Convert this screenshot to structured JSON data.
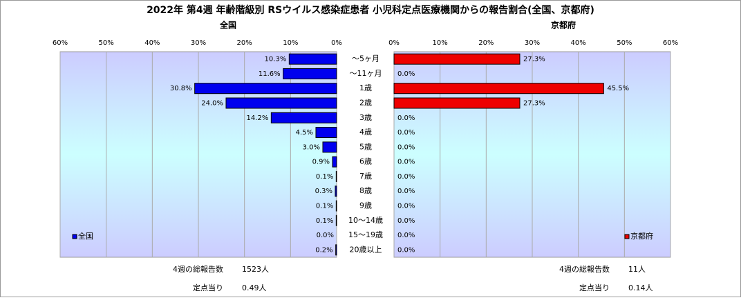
{
  "title": "2022年 第4週 年齢階級別 RSウイルス感染症患者 小児科定点医療機関からの報告割合(全国、京都府)",
  "chart_data": [
    {
      "type": "bar",
      "title": "全国",
      "categories": [
        "～5ヶ月",
        "～11ヶ月",
        "1歳",
        "2歳",
        "3歳",
        "4歳",
        "5歳",
        "6歳",
        "7歳",
        "8歳",
        "9歳",
        "10～14歳",
        "15～19歳",
        "20歳以上"
      ],
      "series": [
        {
          "name": "全国",
          "color": "#0000ee",
          "values": [
            10.3,
            11.6,
            30.8,
            24.0,
            14.2,
            4.5,
            3.0,
            0.9,
            0.1,
            0.3,
            0.1,
            0.1,
            0.0,
            0.2
          ],
          "value_labels": [
            "10.3%",
            "11.6%",
            "30.8%",
            "24.0%",
            "14.2%",
            "4.5%",
            "3.0%",
            "0.9%",
            "0.1%",
            "0.3%",
            "0.1%",
            "0.1%",
            "0.0%",
            "0.2%"
          ]
        }
      ],
      "xlim": [
        60,
        0
      ],
      "xticks": [
        {
          "value": 60,
          "label": "60%"
        },
        {
          "value": 50,
          "label": "50%"
        },
        {
          "value": 40,
          "label": "40%"
        },
        {
          "value": 30,
          "label": "30%"
        },
        {
          "value": 20,
          "label": "20%"
        },
        {
          "value": 10,
          "label": "10%"
        },
        {
          "value": 0,
          "label": "0%"
        }
      ],
      "grid": true,
      "legend": "lower left",
      "notes": [
        {
          "label": "4週の総報告数",
          "value": "1523人"
        },
        {
          "label": "定点当り",
          "value": "0.49人"
        }
      ]
    },
    {
      "type": "bar",
      "title": "京都府",
      "series": [
        {
          "name": "京都府",
          "color": "#ee0000",
          "values": [
            27.3,
            0.0,
            45.5,
            27.3,
            0.0,
            0.0,
            0.0,
            0.0,
            0.0,
            0.0,
            0.0,
            0.0,
            0.0,
            0.0
          ],
          "value_labels": [
            "27.3%",
            "0.0%",
            "45.5%",
            "27.3%",
            "0.0%",
            "0.0%",
            "0.0%",
            "0.0%",
            "0.0%",
            "0.0%",
            "0.0%",
            "0.0%",
            "0.0%",
            "0.0%"
          ]
        }
      ],
      "xlim": [
        0,
        60
      ],
      "xticks": [
        {
          "value": 0,
          "label": "0%"
        },
        {
          "value": 10,
          "label": "10%"
        },
        {
          "value": 20,
          "label": "20%"
        },
        {
          "value": 30,
          "label": "30%"
        },
        {
          "value": 40,
          "label": "40%"
        },
        {
          "value": 50,
          "label": "50%"
        },
        {
          "value": 60,
          "label": "60%"
        }
      ],
      "grid": true,
      "legend": "lower right",
      "notes": [
        {
          "label": "4週の総報告数",
          "value": "11人"
        },
        {
          "label": "定点当り",
          "value": "0.14人"
        }
      ]
    }
  ]
}
